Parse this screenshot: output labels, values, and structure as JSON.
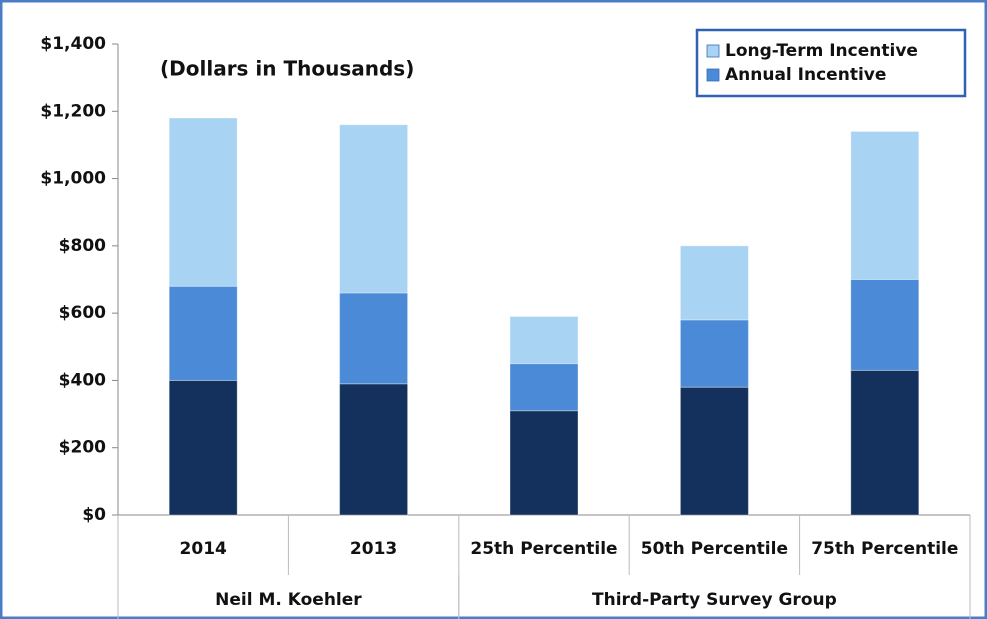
{
  "chart_data": {
    "type": "stacked_bar",
    "subtitle": "(Dollars in Thousands)",
    "categories": [
      "2014",
      "2013",
      "25th Percentile",
      "50th Percentile",
      "75th Percentile"
    ],
    "groups": [
      {
        "label": "Neil M. Koehler",
        "count": 2
      },
      {
        "label": "Third-Party Survey Group",
        "count": 3
      }
    ],
    "series": [
      {
        "color": "#14305c",
        "values": [
          400,
          390,
          310,
          380,
          430
        ]
      },
      {
        "name": "Annual Incentive",
        "color": "#4a8ad6",
        "values": [
          280,
          270,
          140,
          200,
          270
        ]
      },
      {
        "name": "Long-Term Incentive",
        "color": "#a9d3f2",
        "values": [
          500,
          500,
          140,
          220,
          440
        ]
      }
    ],
    "ylim": [
      0,
      1400
    ],
    "yticks": [
      {
        "value": 0,
        "label": "$0"
      },
      {
        "value": 200,
        "label": "$200"
      },
      {
        "value": 400,
        "label": "$400"
      },
      {
        "value": 600,
        "label": "$600"
      },
      {
        "value": 800,
        "label": "$800"
      },
      {
        "value": 1000,
        "label": "$1,000"
      },
      {
        "value": 1200,
        "label": "$1,200"
      },
      {
        "value": 1400,
        "label": "$1,400"
      }
    ],
    "legend": "top-right"
  }
}
